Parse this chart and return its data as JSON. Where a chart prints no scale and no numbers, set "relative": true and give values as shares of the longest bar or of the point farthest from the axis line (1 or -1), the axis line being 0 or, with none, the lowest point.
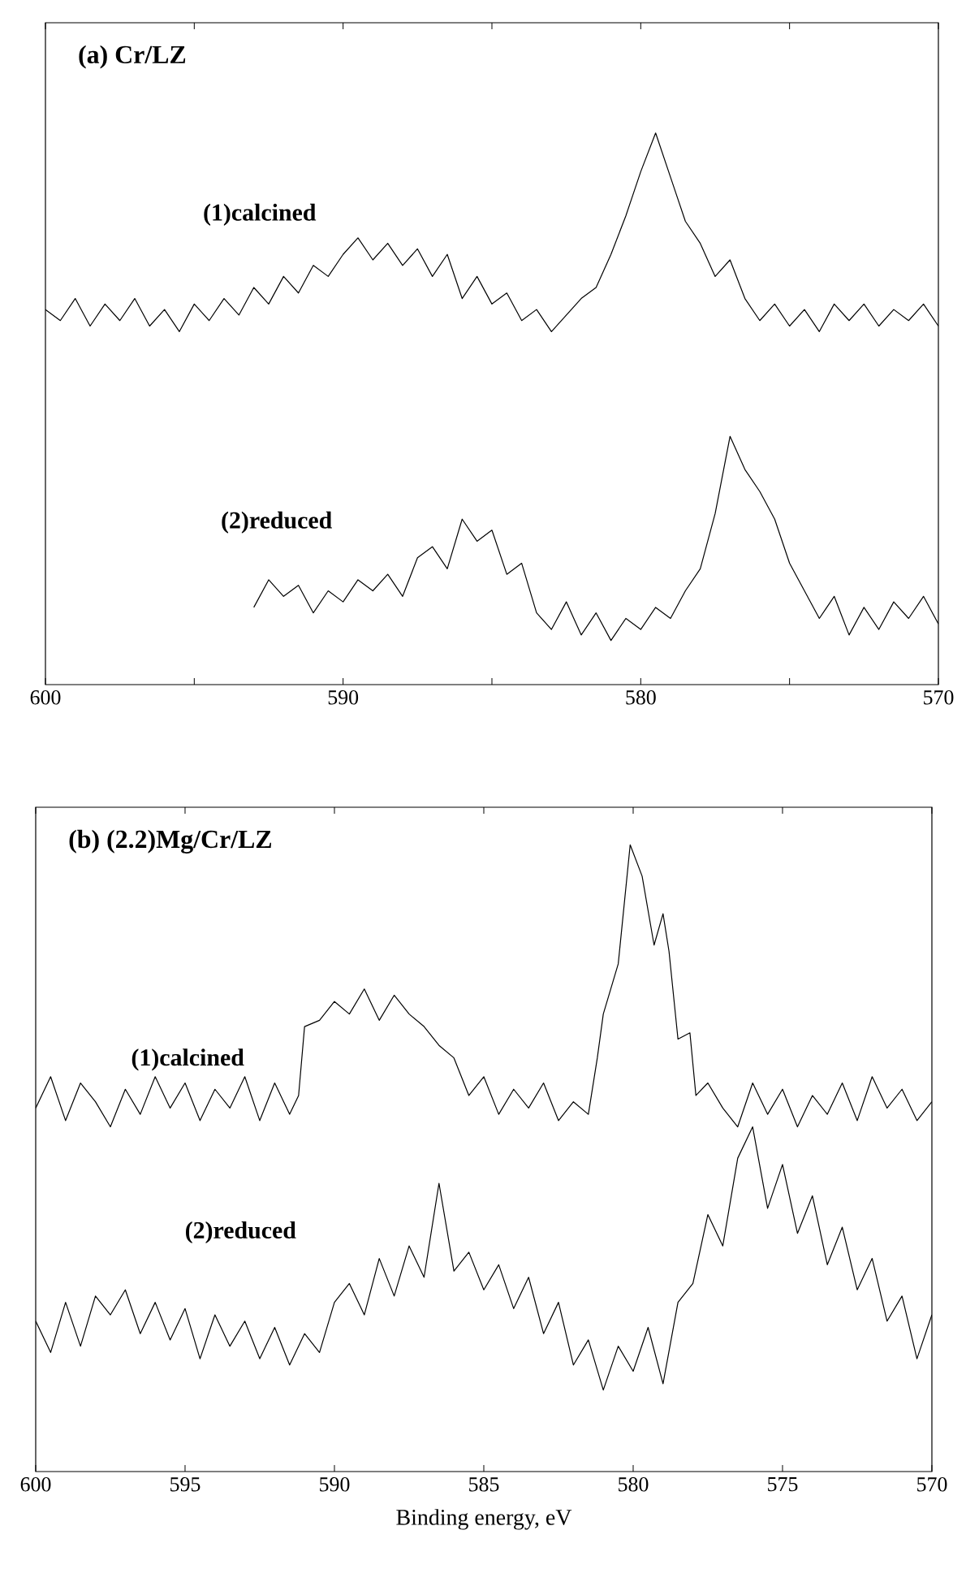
{
  "chart_data": [
    {
      "type": "line",
      "title": "(a) Cr/LZ",
      "relative": true,
      "tick_labels": "x",
      "xlim": [
        600,
        570
      ],
      "xticks": [
        600,
        {
          "value": 595,
          "label": null
        },
        590,
        {
          "value": 585,
          "label": null
        },
        580,
        {
          "value": 575,
          "label": null
        },
        570
      ],
      "series": [
        {
          "name": "(1)calcined",
          "color": "#000000",
          "x": [
            600,
            599.5,
            599,
            598.5,
            598,
            597.5,
            597,
            596.5,
            596,
            595.5,
            595,
            594.5,
            594,
            593.5,
            593,
            592.5,
            592,
            591.5,
            591,
            590.5,
            590,
            589.5,
            589,
            588.5,
            588,
            587.5,
            587,
            586.5,
            586,
            585.5,
            585,
            584.5,
            584,
            583.5,
            583,
            582.5,
            582,
            581.5,
            581,
            580.5,
            580,
            579.5,
            579,
            578.5,
            578,
            577.5,
            577,
            576.5,
            576,
            575.5,
            575,
            574.5,
            574,
            573.5,
            573,
            572.5,
            572,
            571.5,
            571,
            570.5,
            570
          ],
          "values": [
            0.68,
            0.66,
            0.7,
            0.65,
            0.69,
            0.66,
            0.7,
            0.65,
            0.68,
            0.64,
            0.69,
            0.66,
            0.7,
            0.67,
            0.72,
            0.69,
            0.74,
            0.71,
            0.76,
            0.74,
            0.78,
            0.81,
            0.77,
            0.8,
            0.76,
            0.79,
            0.74,
            0.78,
            0.7,
            0.74,
            0.69,
            0.71,
            0.66,
            0.68,
            0.64,
            0.67,
            0.7,
            0.72,
            0.78,
            0.85,
            0.93,
            1.0,
            0.92,
            0.84,
            0.8,
            0.74,
            0.77,
            0.7,
            0.66,
            0.69,
            0.65,
            0.68,
            0.64,
            0.69,
            0.66,
            0.69,
            0.65,
            0.68,
            0.66,
            0.69,
            0.65
          ]
        },
        {
          "name": "(2)reduced",
          "color": "#000000",
          "x": [
            593,
            592.5,
            592,
            591.5,
            591,
            590.5,
            590,
            589.5,
            589,
            588.5,
            588,
            587.5,
            587,
            586.5,
            586,
            585.5,
            585,
            584.5,
            584,
            583.5,
            583,
            582.5,
            582,
            581.5,
            581,
            580.5,
            580,
            579.5,
            579,
            578.5,
            578,
            577.5,
            577,
            576.5,
            576,
            575.5,
            575,
            574.5,
            574,
            573.5,
            573,
            572.5,
            572,
            571.5,
            571,
            570.5,
            570
          ],
          "values": [
            0.14,
            0.19,
            0.16,
            0.18,
            0.13,
            0.17,
            0.15,
            0.19,
            0.17,
            0.2,
            0.16,
            0.23,
            0.25,
            0.21,
            0.3,
            0.26,
            0.28,
            0.2,
            0.22,
            0.13,
            0.1,
            0.15,
            0.09,
            0.13,
            0.08,
            0.12,
            0.1,
            0.14,
            0.12,
            0.17,
            0.21,
            0.31,
            0.45,
            0.39,
            0.35,
            0.3,
            0.22,
            0.17,
            0.12,
            0.16,
            0.09,
            0.14,
            0.1,
            0.15,
            0.12,
            0.16,
            0.11
          ]
        }
      ]
    },
    {
      "type": "line",
      "title": "(b) (2.2)Mg/Cr/LZ",
      "xlabel": "Binding energy, eV",
      "relative": true,
      "tick_labels": "x",
      "xlim": [
        600,
        570
      ],
      "xticks": [
        600,
        595,
        590,
        585,
        580,
        575,
        570
      ],
      "series": [
        {
          "name": "(1)calcined",
          "color": "#000000",
          "x": [
            600,
            599.5,
            599,
            598.5,
            598,
            597.5,
            597,
            596.5,
            596,
            595.5,
            595,
            594.5,
            594,
            593.5,
            593,
            592.5,
            592,
            591.5,
            591.2,
            591,
            590.5,
            590,
            589.5,
            589,
            588.5,
            588,
            587.5,
            587,
            586.5,
            586,
            585.5,
            585,
            584.5,
            584,
            583.5,
            583,
            582.5,
            582,
            581.5,
            581.2,
            581,
            580.5,
            580.1,
            579.7,
            579.3,
            579,
            578.8,
            578.5,
            578.1,
            577.9,
            577.5,
            577,
            576.5,
            576,
            575.5,
            575,
            574.5,
            574,
            573.5,
            573,
            572.5,
            572,
            571.5,
            571,
            570.5,
            570
          ],
          "values": [
            0.58,
            0.63,
            0.56,
            0.62,
            0.59,
            0.55,
            0.61,
            0.57,
            0.63,
            0.58,
            0.62,
            0.56,
            0.61,
            0.58,
            0.63,
            0.56,
            0.62,
            0.57,
            0.6,
            0.71,
            0.72,
            0.75,
            0.73,
            0.77,
            0.72,
            0.76,
            0.73,
            0.71,
            0.68,
            0.66,
            0.6,
            0.63,
            0.57,
            0.61,
            0.58,
            0.62,
            0.56,
            0.59,
            0.57,
            0.66,
            0.73,
            0.81,
            1.0,
            0.95,
            0.84,
            0.89,
            0.83,
            0.69,
            0.7,
            0.6,
            0.62,
            0.58,
            0.55,
            0.62,
            0.57,
            0.61,
            0.55,
            0.6,
            0.57,
            0.62,
            0.56,
            0.63,
            0.58,
            0.61,
            0.56,
            0.59
          ]
        },
        {
          "name": "(2)reduced",
          "color": "#000000",
          "x": [
            600,
            599.5,
            599,
            598.5,
            598,
            597.5,
            597,
            596.5,
            596,
            595.5,
            595,
            594.5,
            594,
            593.5,
            593,
            592.5,
            592,
            591.5,
            591,
            590.5,
            590,
            589.5,
            589,
            588.5,
            588,
            587.5,
            587,
            586.5,
            586,
            585.5,
            585,
            584.5,
            584,
            583.5,
            583,
            582.5,
            582,
            581.5,
            581,
            580.5,
            580,
            579.5,
            579,
            578.5,
            578,
            577.5,
            577,
            576.5,
            576,
            575.5,
            575,
            574.5,
            574,
            573.5,
            573,
            572.5,
            572,
            571.5,
            571,
            570.5,
            570
          ],
          "values": [
            0.24,
            0.19,
            0.27,
            0.2,
            0.28,
            0.25,
            0.29,
            0.22,
            0.27,
            0.21,
            0.26,
            0.18,
            0.25,
            0.2,
            0.24,
            0.18,
            0.23,
            0.17,
            0.22,
            0.19,
            0.27,
            0.3,
            0.25,
            0.34,
            0.28,
            0.36,
            0.31,
            0.46,
            0.32,
            0.35,
            0.29,
            0.33,
            0.26,
            0.31,
            0.22,
            0.27,
            0.17,
            0.21,
            0.13,
            0.2,
            0.16,
            0.23,
            0.14,
            0.27,
            0.3,
            0.41,
            0.36,
            0.5,
            0.55,
            0.42,
            0.49,
            0.38,
            0.44,
            0.33,
            0.39,
            0.29,
            0.34,
            0.24,
            0.28,
            0.18,
            0.25
          ]
        }
      ]
    }
  ]
}
